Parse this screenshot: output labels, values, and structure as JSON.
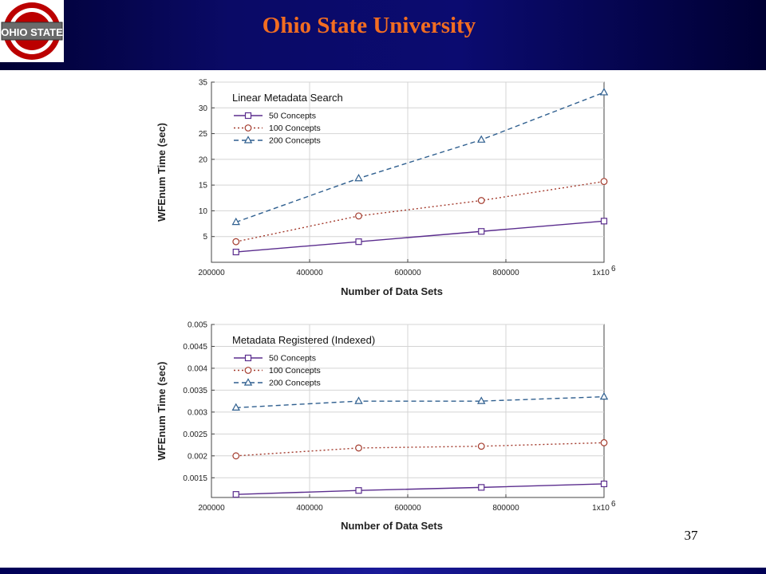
{
  "header": {
    "title": "Ohio State University",
    "logo_text": "OHIO STATE"
  },
  "footer": {
    "page_number": "37"
  },
  "colors": {
    "series_50": "#5b2d8e",
    "series_100": "#a33a2c",
    "series_200": "#2f5f8f",
    "title": "#f26d21"
  },
  "chart_data": [
    {
      "type": "line",
      "title": "Linear Metadata Search",
      "xlabel": "Number of Data Sets",
      "ylabel": "WFEnum Time (sec)",
      "x": [
        250000,
        500000,
        750000,
        1000000
      ],
      "xlim": [
        200000,
        1000000
      ],
      "ylim": [
        0,
        35
      ],
      "xticks": [
        200000,
        400000,
        600000,
        800000,
        1000000
      ],
      "xtick_labels": [
        "200000",
        "400000",
        "600000",
        "800000",
        "1x10"
      ],
      "xtick_exp": "6",
      "yticks": [
        5,
        10,
        15,
        20,
        25,
        30,
        35
      ],
      "ytick_labels": [
        "5",
        "10",
        "15",
        "20",
        "25",
        "30",
        "35"
      ],
      "grid": true,
      "legend": "top-left",
      "series": [
        {
          "name": "50 Concepts",
          "values": [
            2,
            4,
            6,
            8
          ],
          "color": "#5b2d8e",
          "marker": "square",
          "dash": "solid"
        },
        {
          "name": "100 Concepts",
          "values": [
            4,
            9,
            12,
            15.7
          ],
          "color": "#a33a2c",
          "marker": "circle",
          "dash": "dotted"
        },
        {
          "name": "200 Concepts",
          "values": [
            7.8,
            16.3,
            23.8,
            33
          ],
          "color": "#2f5f8f",
          "marker": "triangle",
          "dash": "dashed"
        }
      ]
    },
    {
      "type": "line",
      "title": "Metadata Registered (Indexed)",
      "xlabel": "Number of Data Sets",
      "ylabel": "WFEnum Time (sec)",
      "x": [
        250000,
        500000,
        750000,
        1000000
      ],
      "xlim": [
        200000,
        1000000
      ],
      "ylim": [
        0.00105,
        0.005
      ],
      "xticks": [
        200000,
        400000,
        600000,
        800000,
        1000000
      ],
      "xtick_labels": [
        "200000",
        "400000",
        "600000",
        "800000",
        "1x10"
      ],
      "xtick_exp": "6",
      "yticks": [
        0.0015,
        0.002,
        0.0025,
        0.003,
        0.0035,
        0.004,
        0.0045,
        0.005
      ],
      "ytick_labels": [
        "0.0015",
        "0.002",
        "0.0025",
        "0.003",
        "0.0035",
        "0.004",
        "0.0045",
        "0.005"
      ],
      "grid": true,
      "legend": "top-left",
      "series": [
        {
          "name": "50 Concepts",
          "values": [
            0.00112,
            0.00121,
            0.00128,
            0.00136
          ],
          "color": "#5b2d8e",
          "marker": "square",
          "dash": "solid"
        },
        {
          "name": "100 Concepts",
          "values": [
            0.002,
            0.00218,
            0.00222,
            0.0023
          ],
          "color": "#a33a2c",
          "marker": "circle",
          "dash": "dotted"
        },
        {
          "name": "200 Concepts",
          "values": [
            0.0031,
            0.00325,
            0.00325,
            0.00335
          ],
          "color": "#2f5f8f",
          "marker": "triangle",
          "dash": "dashed"
        }
      ]
    }
  ]
}
